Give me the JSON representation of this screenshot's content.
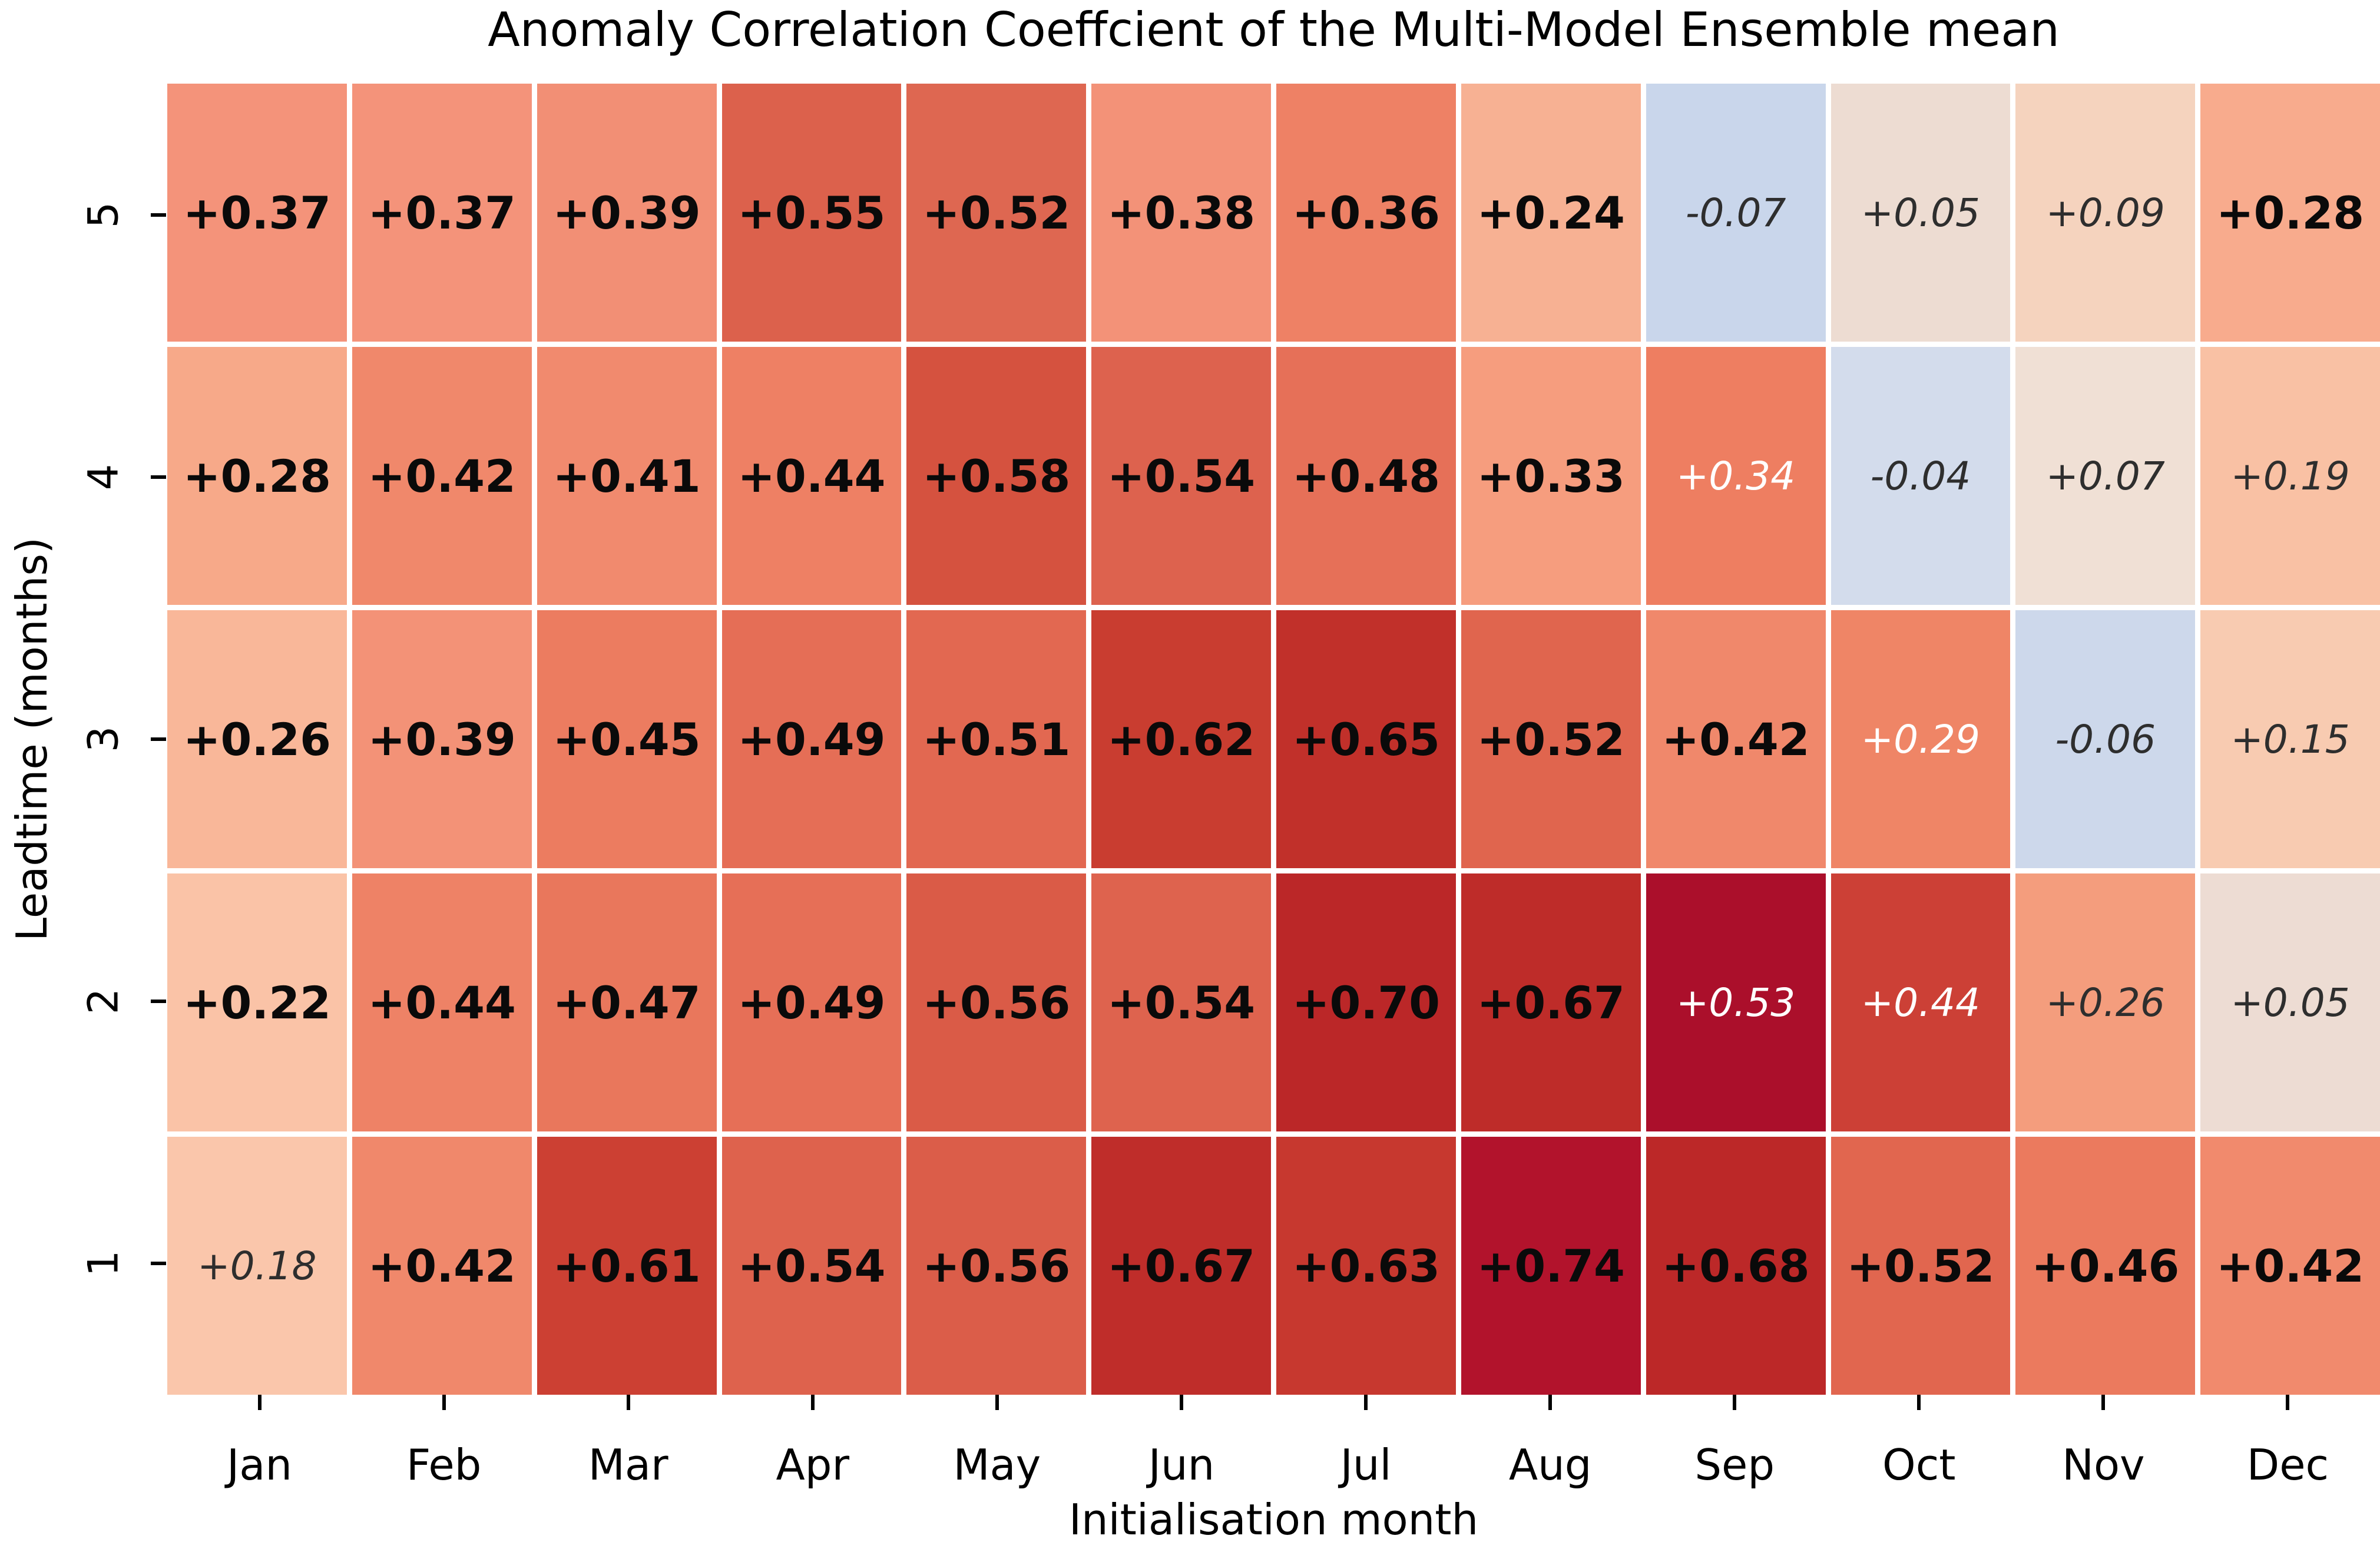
{
  "chart_data": {
    "type": "heatmap",
    "title": "Anomaly Correlation Coeffcient of the Multi-Model Ensemble mean",
    "xlabel": "Initialisation month",
    "ylabel": "Leadtime (months)",
    "x_categories": [
      "Jan",
      "Feb",
      "Mar",
      "Apr",
      "May",
      "Jun",
      "Jul",
      "Aug",
      "Sep",
      "Oct",
      "Nov",
      "Dec"
    ],
    "y_categories": [
      "5",
      "4",
      "3",
      "2",
      "1"
    ],
    "value_range_hint": [
      -1,
      1
    ],
    "colormap_hint": "diverging blue-white-red",
    "grid_line_color": "#ffffff",
    "rows": [
      {
        "leadtime": "5",
        "values": [
          "+0.37",
          "+0.37",
          "+0.39",
          "+0.55",
          "+0.52",
          "+0.38",
          "+0.36",
          "+0.24",
          "-0.07",
          "+0.05",
          "+0.09",
          "+0.28"
        ],
        "styles": [
          "bold",
          "bold",
          "bold",
          "bold",
          "bold",
          "bold",
          "bold",
          "bold",
          "italic-dark",
          "italic-dark",
          "italic-dark",
          "bold"
        ],
        "colors": [
          "#f4937a",
          "#f4937a",
          "#f28f75",
          "#dc614c",
          "#de6751",
          "#f39278",
          "#ee8165",
          "#f7b193",
          "#c9d6eb",
          "#eddcd2",
          "#f5d3be",
          "#f8ab8d"
        ]
      },
      {
        "leadtime": "4",
        "values": [
          "+0.28",
          "+0.42",
          "+0.41",
          "+0.44",
          "+0.58",
          "+0.54",
          "+0.48",
          "+0.33",
          "+0.34",
          "-0.04",
          "+0.07",
          "+0.19"
        ],
        "styles": [
          "bold",
          "bold",
          "bold",
          "bold",
          "bold",
          "bold",
          "bold",
          "bold",
          "italic-white",
          "italic-dark",
          "italic-dark",
          "italic-dark"
        ],
        "colors": [
          "#f7a989",
          "#f0886b",
          "#f18a6e",
          "#ee8064",
          "#d5523f",
          "#dd624e",
          "#e67058",
          "#f69d7e",
          "#ee7e61",
          "#d3dcec",
          "#f0e0d5",
          "#f9c1a4"
        ]
      },
      {
        "leadtime": "3",
        "values": [
          "+0.26",
          "+0.39",
          "+0.45",
          "+0.49",
          "+0.51",
          "+0.62",
          "+0.65",
          "+0.52",
          "+0.42",
          "+0.29",
          "-0.06",
          "+0.15"
        ],
        "styles": [
          "bold",
          "bold",
          "bold",
          "bold",
          "bold",
          "bold",
          "bold",
          "bold",
          "bold",
          "italic-white",
          "italic-dark",
          "italic-dark"
        ],
        "colors": [
          "#f9b799",
          "#f39277",
          "#ec7c60",
          "#e56e56",
          "#e26851",
          "#c93d30",
          "#c1302a",
          "#e0654e",
          "#f0886b",
          "#ef8566",
          "#cdd8eb",
          "#f8cbb1"
        ]
      },
      {
        "leadtime": "2",
        "values": [
          "+0.22",
          "+0.44",
          "+0.47",
          "+0.49",
          "+0.56",
          "+0.54",
          "+0.70",
          "+0.67",
          "+0.53",
          "+0.44",
          "+0.26",
          "+0.05"
        ],
        "styles": [
          "bold",
          "bold",
          "bold",
          "bold",
          "bold",
          "bold",
          "bold",
          "bold",
          "italic-white",
          "italic-white",
          "italic-dark",
          "italic-dark"
        ],
        "colors": [
          "#fac3a7",
          "#ee8266",
          "#e9775c",
          "#e66f57",
          "#da5b47",
          "#de634e",
          "#bb2728",
          "#be2c29",
          "#ab0f2b",
          "#cc4036",
          "#f49d7d",
          "#eddcd3"
        ]
      },
      {
        "leadtime": "1",
        "values": [
          "+0.18",
          "+0.42",
          "+0.61",
          "+0.54",
          "+0.56",
          "+0.67",
          "+0.63",
          "+0.74",
          "+0.68",
          "+0.52",
          "+0.46",
          "+0.42"
        ],
        "styles": [
          "italic-dark",
          "bold",
          "bold",
          "bold",
          "bold",
          "bold",
          "bold",
          "bold",
          "bold",
          "bold",
          "bold",
          "bold"
        ],
        "colors": [
          "#fac6ab",
          "#f0886b",
          "#cc4033",
          "#de624d",
          "#db5d49",
          "#bf2d2a",
          "#c7382f",
          "#b2132c",
          "#bc2828",
          "#e1664f",
          "#eb7a5e",
          "#f18a6d"
        ]
      }
    ]
  }
}
